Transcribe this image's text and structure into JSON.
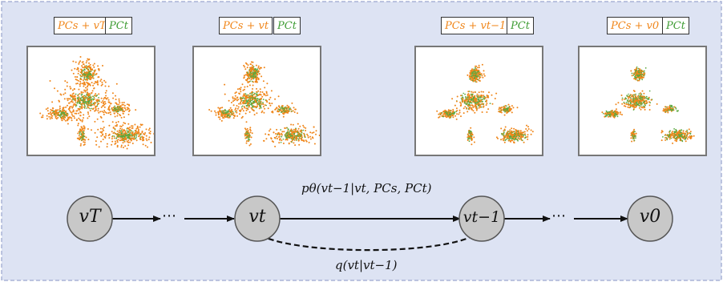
{
  "colors": {
    "background": "#dde3f3",
    "border": "#a9b3d6",
    "node_fill": "#c8c8c8",
    "source_points": "#f0861a",
    "target_points": "#5aa83e"
  },
  "top_panels": [
    {
      "source_tag": "PCs + vT",
      "target_tag": "PCt",
      "noise": 1.0
    },
    {
      "source_tag": "PCs + vt",
      "target_tag": "PCt",
      "noise": 0.55
    },
    {
      "source_tag": "PCs + vt−1",
      "target_tag": "PCt",
      "noise": 0.28
    },
    {
      "source_tag": "PCs + v0",
      "target_tag": "PCt",
      "noise": 0.08
    }
  ],
  "nodes": [
    {
      "label": "vT"
    },
    {
      "label": "vt"
    },
    {
      "label": "vt−1"
    },
    {
      "label": "v0"
    }
  ],
  "ellipsis": "⋯",
  "forward_label": "pθ(vt−1|vt, PCs, PCt)",
  "reverse_label": "q(vt|vt−1)"
}
